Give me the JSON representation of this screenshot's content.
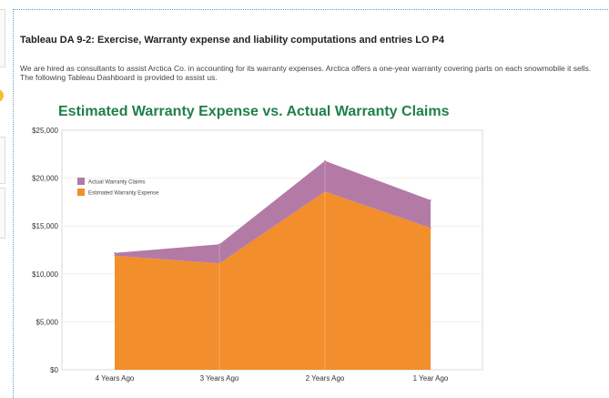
{
  "heading": "Tableau DA 9-2: Exercise, Warranty expense and liability computations and entries LO P4",
  "intro": "We are hired as consultants to assist Arctica Co. in accounting for its warranty expenses. Arctica offers a one-year warranty covering parts on each snowmobile it sells. The following Tableau Dashboard is provided to assist us.",
  "colors": {
    "actual": "#b47aa6",
    "estimated": "#f28e2b",
    "title": "#1f7f4a"
  },
  "chart_data": {
    "type": "area",
    "title": "Estimated Warranty Expense vs. Actual Warranty Claims",
    "xlabel": "",
    "ylabel": "",
    "categories": [
      "4 Years Ago",
      "3 Years Ago",
      "2 Years Ago",
      "1 Year Ago"
    ],
    "ylim": [
      0,
      25000
    ],
    "yticks": [
      0,
      5000,
      10000,
      15000,
      20000,
      25000
    ],
    "ytick_labels": [
      "$0",
      "$5,000",
      "$10,000",
      "$15,000",
      "$20,000",
      "$25,000"
    ],
    "series": [
      {
        "name": "Actual Warranty Claims",
        "values": [
          12200,
          13100,
          21800,
          17700
        ]
      },
      {
        "name": "Estimated Warranty Expense",
        "values": [
          11900,
          11100,
          18600,
          14800
        ]
      }
    ],
    "grid": true,
    "legend": "top-left"
  }
}
